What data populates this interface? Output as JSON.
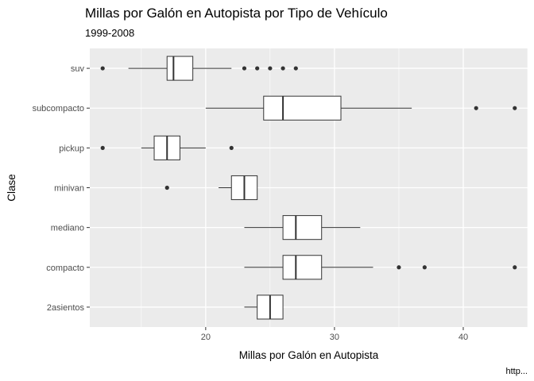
{
  "chart_data": {
    "type": "boxplot",
    "title": "Millas por Galón en Autopista por Tipo de Vehículo",
    "subtitle": "1999-2008",
    "xlabel": "Millas por Galón en Autopista",
    "ylabel": "Clase",
    "caption": "http...",
    "xlim": [
      11,
      45
    ],
    "xticks": [
      20,
      30,
      40
    ],
    "xtick_labels": [
      "20",
      "30",
      "40"
    ],
    "grid": true,
    "colors": {
      "panel": "#ebebeb",
      "grid": "#ffffff",
      "box_fill": "#ffffff",
      "line": "#333333",
      "outlier": "#333333"
    },
    "categories": [
      "suv",
      "subcompacto",
      "pickup",
      "minivan",
      "mediano",
      "compacto",
      "2asientos"
    ],
    "boxes": [
      {
        "category": "suv",
        "min": 14,
        "q1": 17,
        "median": 17.5,
        "q3": 19,
        "max": 22,
        "outliers": [
          12,
          23,
          24,
          25,
          26,
          27
        ]
      },
      {
        "category": "subcompacto",
        "min": 20,
        "q1": 24.5,
        "median": 26,
        "q3": 30.5,
        "max": 36,
        "outliers": [
          41,
          44
        ]
      },
      {
        "category": "pickup",
        "min": 15,
        "q1": 16,
        "median": 17,
        "q3": 18,
        "max": 20,
        "outliers": [
          12,
          22
        ]
      },
      {
        "category": "minivan",
        "min": 21,
        "q1": 22,
        "median": 23,
        "q3": 24,
        "max": 24,
        "outliers": [
          17
        ]
      },
      {
        "category": "mediano",
        "min": 23,
        "q1": 26,
        "median": 27,
        "q3": 29,
        "max": 32,
        "outliers": []
      },
      {
        "category": "compacto",
        "min": 23,
        "q1": 26,
        "median": 27,
        "q3": 29,
        "max": 33,
        "outliers": [
          35,
          37,
          44
        ]
      },
      {
        "category": "2asientos",
        "min": 23,
        "q1": 24,
        "median": 25,
        "q3": 26,
        "max": 26,
        "outliers": []
      }
    ]
  }
}
